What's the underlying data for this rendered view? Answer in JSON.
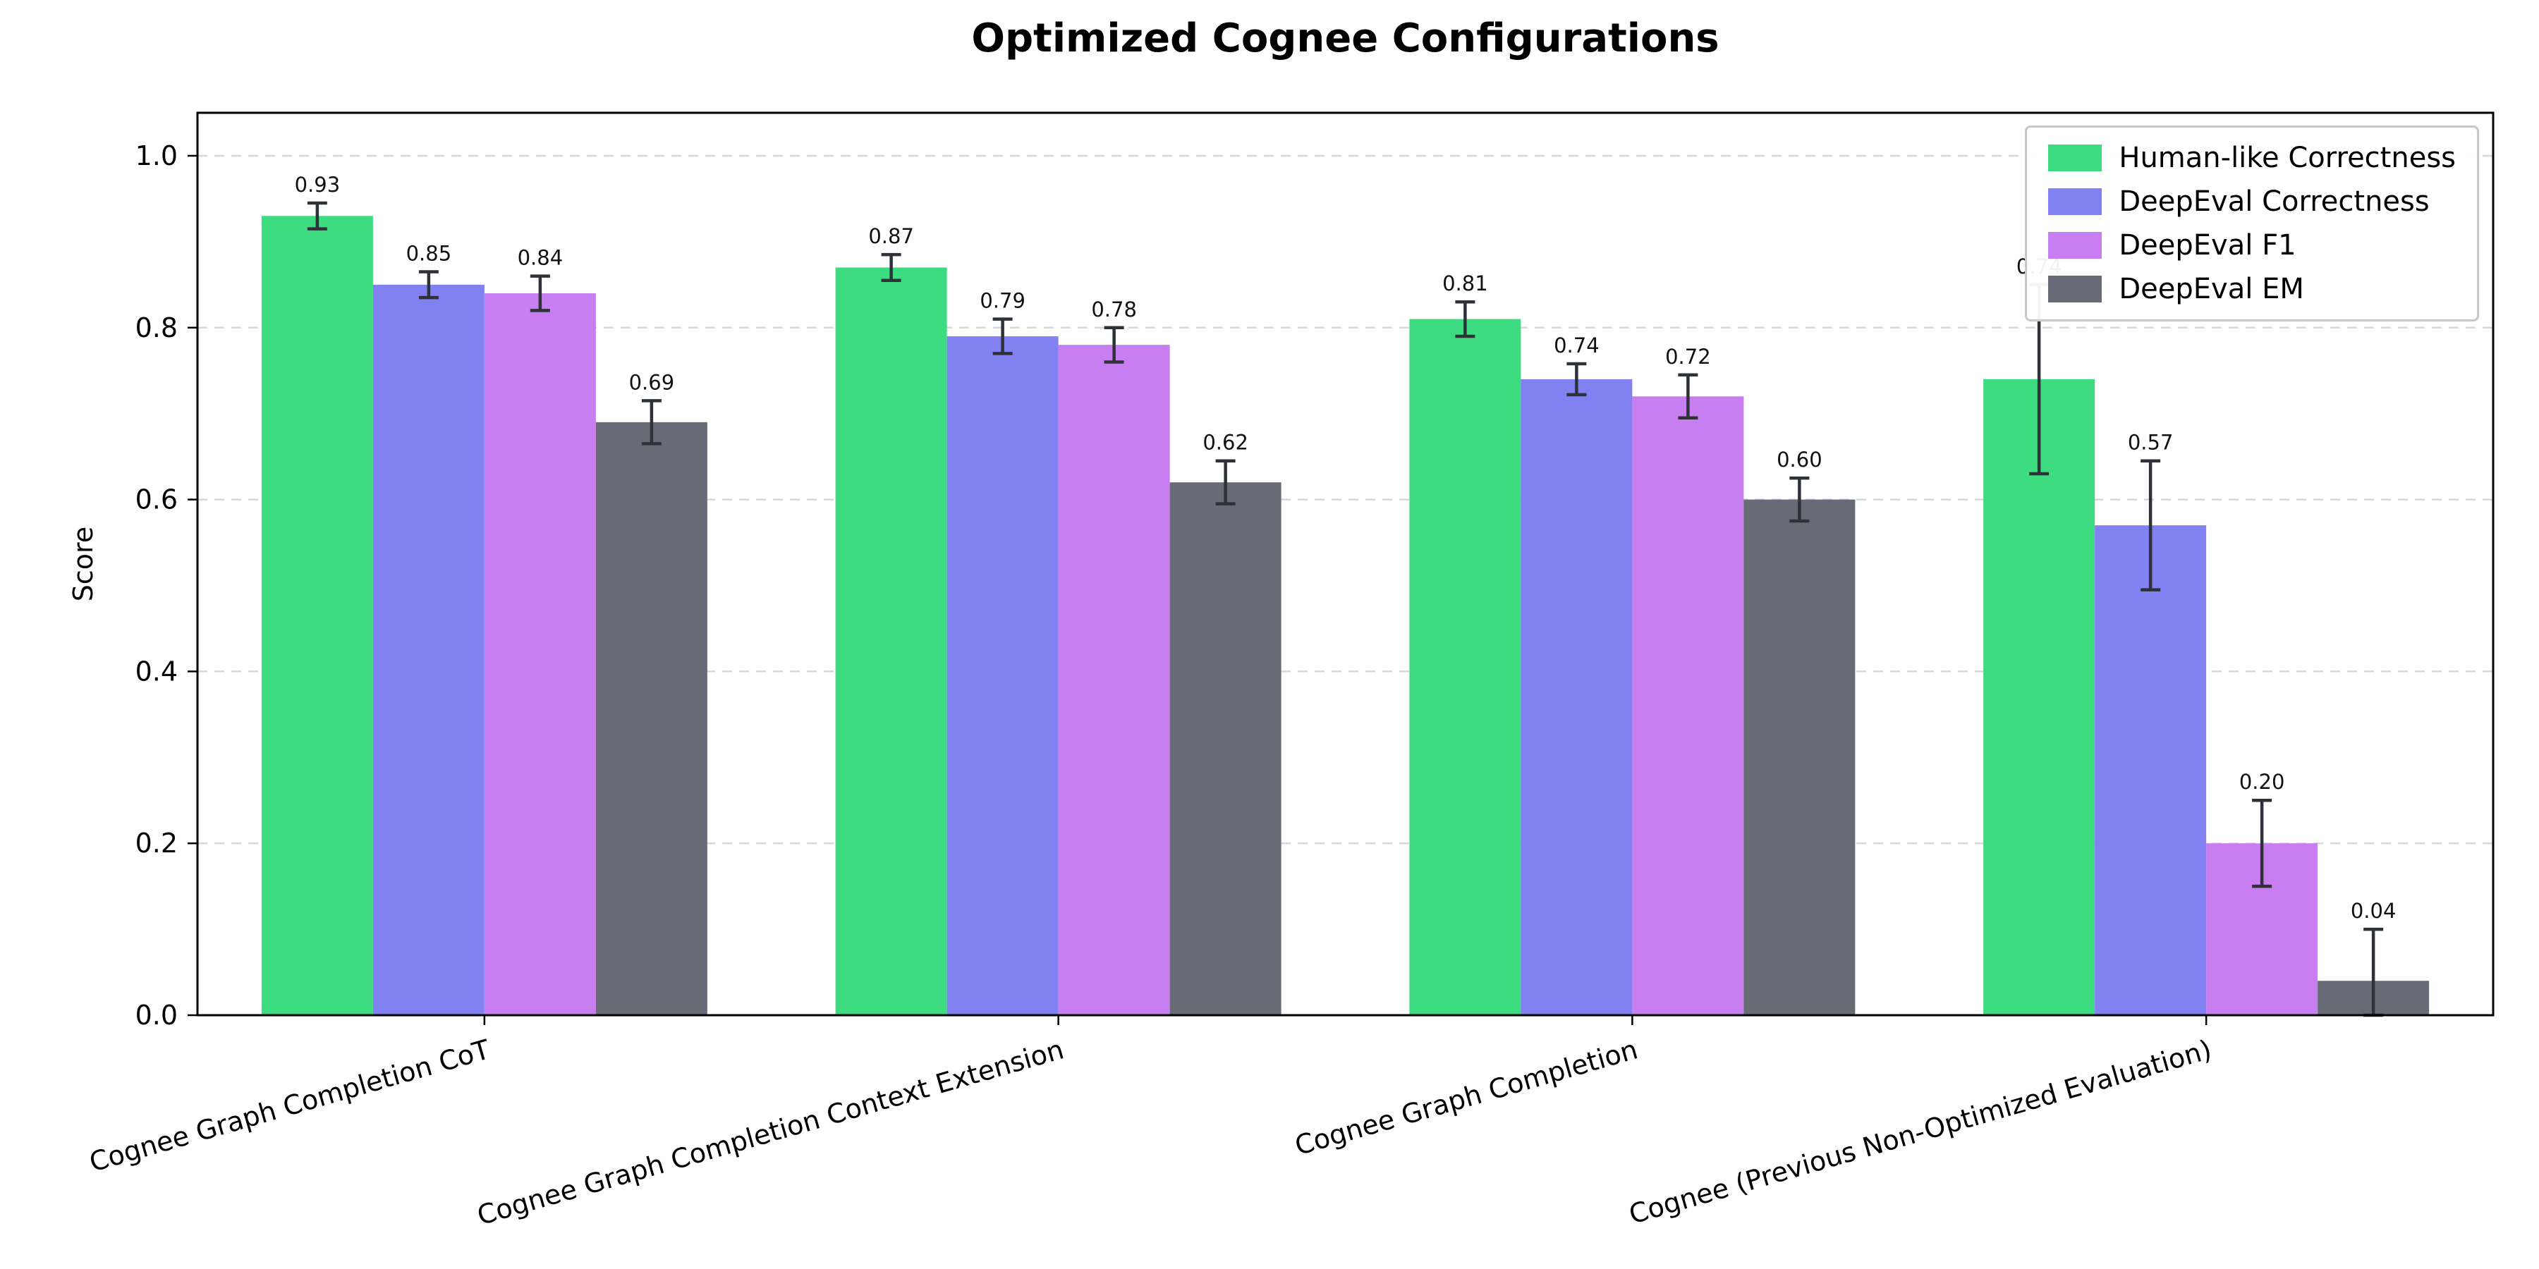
{
  "chart_data": {
    "type": "bar",
    "title": "Optimized Cognee Configurations",
    "xlabel": "",
    "ylabel": "Score",
    "ylim": [
      0,
      1.05
    ],
    "yticks": [
      0.0,
      0.2,
      0.4,
      0.6,
      0.8,
      1.0
    ],
    "grid": "horizontal-dashed",
    "legend_position": "upper-right",
    "value_label_format": "2dp",
    "categories": [
      "Cognee Graph Completion CoT",
      "Cognee Graph Completion Context Extension",
      "Cognee Graph Completion",
      "Cognee (Previous Non-Optimized Evaluation)"
    ],
    "series": [
      {
        "name": "Human-like Correctness",
        "color": "#3edc81",
        "values": [
          0.93,
          0.87,
          0.81,
          0.74
        ],
        "errors": [
          0.015,
          0.015,
          0.02,
          0.11
        ]
      },
      {
        "name": "DeepEval Correctness",
        "color": "#8181f2",
        "values": [
          0.85,
          0.79,
          0.74,
          0.57
        ],
        "errors": [
          0.015,
          0.02,
          0.018,
          0.075
        ]
      },
      {
        "name": "DeepEval F1",
        "color": "#c77ef0",
        "values": [
          0.84,
          0.78,
          0.72,
          0.2
        ],
        "errors": [
          0.02,
          0.02,
          0.025,
          0.05
        ]
      },
      {
        "name": "DeepEval EM",
        "color": "#676b76",
        "values": [
          0.69,
          0.62,
          0.6,
          0.04
        ],
        "errors": [
          0.025,
          0.025,
          0.025,
          0.06
        ]
      }
    ],
    "error_bar_color": "#2e3238",
    "axis_color": "#000000",
    "grid_color": "#d8d8d8"
  }
}
